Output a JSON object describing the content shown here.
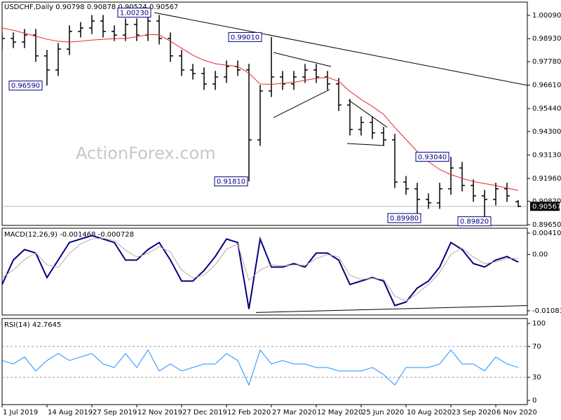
{
  "chart_data": [
    {
      "type": "ohlc",
      "title": "USDCHF,Daily",
      "watermark": "ActionForex.com",
      "color": "#000000",
      "x": [
        0,
        8,
        16,
        24,
        32,
        40,
        48,
        56,
        64,
        72,
        80,
        88,
        96,
        104,
        112,
        120,
        128,
        136,
        144,
        152,
        160,
        168,
        176,
        184,
        192,
        200,
        208,
        216,
        224,
        232,
        240,
        248,
        256,
        264,
        272,
        280,
        288,
        296,
        304,
        312,
        320,
        328,
        336,
        344,
        352,
        360,
        368
      ],
      "xlim": [
        0,
        374.5
      ],
      "open": [
        0.987,
        0.9894,
        0.9876,
        0.9911,
        0.9807,
        0.9737,
        0.9841,
        0.9929,
        0.9946,
        0.9981,
        0.9929,
        0.9911,
        0.9964,
        0.9911,
        0.9981,
        0.9894,
        0.9807,
        0.9737,
        0.9719,
        0.9667,
        0.9702,
        0.9754,
        0.9737,
        0.9388,
        0.9632,
        0.9702,
        0.9667,
        0.9702,
        0.9737,
        0.9702,
        0.9667,
        0.9562,
        0.944,
        0.9475,
        0.9423,
        0.9388,
        0.9178,
        0.9144,
        0.9091,
        0.9074,
        0.9144,
        0.9248,
        0.9161,
        0.9109,
        0.9091,
        0.9144,
        0.90798
      ],
      "high": [
        0.9924,
        0.9924,
        0.9941,
        0.9941,
        0.9837,
        0.9871,
        0.9959,
        0.9976,
        1.0011,
        1.0011,
        0.9959,
        0.9994,
        0.9994,
        1.0023,
        1.0011,
        0.9924,
        0.9837,
        0.9767,
        0.9749,
        0.9732,
        0.9784,
        0.9784,
        0.9767,
        0.9662,
        0.9901,
        0.9732,
        0.9732,
        0.9767,
        0.9767,
        0.9732,
        0.9697,
        0.9592,
        0.9505,
        0.9505,
        0.9453,
        0.9418,
        0.9208,
        0.9174,
        0.9121,
        0.9174,
        0.9304,
        0.9278,
        0.9191,
        0.9139,
        0.9174,
        0.9174,
        0.90878
      ],
      "low": [
        0.984,
        0.9846,
        0.9846,
        0.9777,
        0.9659,
        0.9707,
        0.9811,
        0.9899,
        0.9916,
        0.9899,
        0.9881,
        0.9881,
        0.9881,
        0.9881,
        0.9864,
        0.9777,
        0.9707,
        0.9689,
        0.9637,
        0.9637,
        0.9672,
        0.9707,
        0.9181,
        0.9358,
        0.9602,
        0.9637,
        0.9637,
        0.9672,
        0.9672,
        0.9637,
        0.9532,
        0.941,
        0.941,
        0.9393,
        0.9358,
        0.9148,
        0.9114,
        0.8998,
        0.9044,
        0.9044,
        0.9114,
        0.9131,
        0.9079,
        0.8982,
        0.9061,
        0.9079,
        0.90524
      ],
      "close": [
        0.9894,
        0.9876,
        0.9911,
        0.9807,
        0.9737,
        0.9841,
        0.9929,
        0.9946,
        0.9981,
        0.9929,
        0.9911,
        0.9964,
        0.9911,
        0.9981,
        0.9894,
        0.9807,
        0.9737,
        0.9719,
        0.9667,
        0.9702,
        0.9754,
        0.9737,
        0.9388,
        0.9632,
        0.9702,
        0.9667,
        0.9702,
        0.9737,
        0.9702,
        0.9667,
        0.9562,
        0.944,
        0.9475,
        0.9423,
        0.9388,
        0.9178,
        0.9144,
        0.9091,
        0.9074,
        0.9144,
        0.9248,
        0.9161,
        0.9109,
        0.9091,
        0.9144,
        0.9109,
        0.90567
      ],
      "lines": [
        {
          "color": "#e8232c",
          "values": [
            0.9946,
            0.9935,
            0.992,
            0.9905,
            0.989,
            0.988,
            0.9876,
            0.988,
            0.9886,
            0.989,
            0.9893,
            0.9894,
            0.9902,
            0.9914,
            0.9912,
            0.988,
            0.9845,
            0.981,
            0.9785,
            0.9768,
            0.976,
            0.9755,
            0.972,
            0.9667,
            0.9665,
            0.967,
            0.9675,
            0.9685,
            0.9695,
            0.97,
            0.968,
            0.963,
            0.959,
            0.9555,
            0.9515,
            0.945,
            0.939,
            0.933,
            0.928,
            0.924,
            0.9215,
            0.9196,
            0.918,
            0.917,
            0.916,
            0.9148,
            0.9136
          ]
        }
      ],
      "ylim": [
        0.89615,
        1.00753
      ],
      "yticks": [
        {
          "value": 1.0009,
          "label": "1.00090"
        },
        {
          "value": 0.9893,
          "label": "0.98930"
        },
        {
          "value": 0.9778,
          "label": "0.97780"
        },
        {
          "value": 0.9661,
          "label": "0.96610"
        },
        {
          "value": 0.9544,
          "label": "0.95440"
        },
        {
          "value": 0.943,
          "label": "0.94300"
        },
        {
          "value": 0.9313,
          "label": "0.93130"
        },
        {
          "value": 0.9196,
          "label": "0.91960"
        },
        {
          "value": 0.9082,
          "label": "0.90820"
        },
        {
          "value": 0.8965,
          "label": "0.89650"
        }
      ],
      "annotations": [
        {
          "label": "1.00230",
          "x": 108.5,
          "y": 1.0023
        },
        {
          "label": "0.99010",
          "x": 187.5,
          "y": 0.9901
        },
        {
          "label": "0.96590",
          "x": 31,
          "y": 0.9659
        },
        {
          "label": "0.91810",
          "x": 177.5,
          "y": 0.9181
        },
        {
          "label": "0.93040",
          "x": 321,
          "y": 0.9304
        },
        {
          "label": "0.89980",
          "x": 301,
          "y": 0.8998
        },
        {
          "label": "0.89820",
          "x": 351,
          "y": 0.8982
        }
      ],
      "trendlines": [
        {
          "x": [
            108.5,
            374.5
          ],
          "y": [
            1.0023,
            0.966
          ]
        },
        {
          "x": [
            193.5,
            234.5
          ],
          "y": [
            0.9824,
            0.9754
          ]
        },
        {
          "x": [
            193.5,
            233.5
          ],
          "y": [
            0.9499,
            0.9639
          ]
        },
        {
          "x": [
            247,
            274.5
          ],
          "y": [
            0.9587,
            0.9451
          ]
        },
        {
          "x": [
            246,
            272.5
          ],
          "y": [
            0.937,
            0.936
          ]
        }
      ]
    },
    {
      "type": "line",
      "title": "MACD(12,26,9)",
      "x": [
        0,
        8,
        16,
        24,
        32,
        40,
        48,
        56,
        64,
        72,
        80,
        88,
        96,
        104,
        112,
        120,
        128,
        136,
        144,
        152,
        160,
        168,
        176,
        184,
        192,
        200,
        208,
        216,
        224,
        232,
        240,
        248,
        256,
        264,
        272,
        280,
        288,
        296,
        304,
        312,
        320,
        328,
        336,
        344,
        352,
        360,
        368
      ],
      "xlim": [
        0,
        374.5
      ],
      "series": [
        {
          "color": "#000080",
          "values": [
            -0.00578,
            -0.00108,
            0.00094,
            0.00027,
            -0.00444,
            -0.00108,
            0.00229,
            0.00296,
            0.00363,
            0.00296,
            0.00229,
            -0.00108,
            -0.00108,
            0.00094,
            0.00229,
            -0.00108,
            -0.00511,
            -0.00511,
            -0.00309,
            -0.0004,
            0.00296,
            0.00229,
            -0.01049,
            0.00296,
            -0.00242,
            -0.00242,
            -0.00175,
            -0.00242,
            0.00027,
            0.00027,
            -0.00108,
            -0.00578,
            -0.00511,
            -0.00444,
            -0.00511,
            -0.00982,
            -0.00915,
            -0.00646,
            -0.00511,
            -0.00242,
            0.00229,
            0.00094,
            -0.00175,
            -0.00242,
            -0.00108,
            -0.0004,
            -0.001468
          ]
        },
        {
          "color": "#c9a3a3",
          "values": [
            -0.0045,
            -0.003,
            -0.001,
            0.0003,
            -0.002,
            -0.0025,
            0.0002,
            0.002,
            0.003,
            0.0031,
            0.0027,
            0.0008,
            -0.0005,
            0.0002,
            0.0015,
            0.0005,
            -0.003,
            -0.0045,
            -0.004,
            -0.002,
            0.001,
            0.002,
            -0.005,
            -0.003,
            -0.002,
            -0.0022,
            -0.002,
            -0.0021,
            -0.0008,
            0.0,
            -0.0005,
            -0.004,
            -0.0048,
            -0.0046,
            -0.0048,
            -0.008,
            -0.009,
            -0.0075,
            -0.0058,
            -0.0035,
            0.0,
            0.0012,
            -0.0005,
            -0.0018,
            -0.0014,
            -0.0008,
            -0.000728
          ]
        }
      ],
      "ylim": [
        -0.01164,
        0.005043
      ],
      "yticks": [
        0.004101,
        {
          "value": 0,
          "label": "0.00"
        },
        -0.010833
      ],
      "trendlines": [
        {
          "x": [
            181,
            374.5
          ],
          "y": [
            -0.01116,
            -0.00982
          ]
        }
      ]
    },
    {
      "type": "line",
      "title": "RSI(14)",
      "x": [
        0,
        8,
        16,
        24,
        32,
        40,
        48,
        56,
        64,
        72,
        80,
        88,
        96,
        104,
        112,
        120,
        128,
        136,
        144,
        152,
        160,
        168,
        176,
        184,
        192,
        200,
        208,
        216,
        224,
        232,
        240,
        248,
        256,
        264,
        272,
        280,
        288,
        296,
        304,
        312,
        320,
        328,
        336,
        344,
        352,
        360,
        368
      ],
      "xlim": [
        0,
        374.5
      ],
      "series": [
        {
          "color": "#1e90ff",
          "values": [
            51.8,
            47.3,
            56.4,
            38.2,
            51.8,
            60.9,
            51.8,
            56.4,
            60.9,
            47.3,
            42.7,
            60.9,
            42.7,
            65.5,
            38.2,
            47.3,
            38.2,
            42.7,
            47.3,
            47.3,
            60.9,
            51.8,
            20.0,
            65.5,
            47.3,
            51.8,
            47.3,
            47.3,
            42.7,
            42.7,
            38.2,
            38.2,
            38.2,
            42.7,
            33.6,
            20.0,
            42.7,
            42.7,
            42.7,
            47.3,
            65.5,
            47.3,
            47.3,
            38.2,
            56.4,
            47.3,
            42.7645
          ]
        }
      ],
      "ylim": [
        -5.5,
        106.4
      ],
      "yticks": [
        100,
        70,
        30,
        0
      ],
      "levels": [
        70,
        30
      ],
      "xticks": [
        {
          "value": 0,
          "label": "1 Jul 2019"
        },
        {
          "value": 32,
          "label": "14 Aug 2019"
        },
        {
          "value": 64,
          "label": "27 Sep 2019"
        },
        {
          "value": 96,
          "label": "12 Nov 2019"
        },
        {
          "value": 128,
          "label": "27 Dec 2019"
        },
        {
          "value": 160,
          "label": "12 Feb 2020"
        },
        {
          "value": 192,
          "label": "27 Mar 2020"
        },
        {
          "value": 224,
          "label": "12 May 2020"
        },
        {
          "value": 256,
          "label": "25 Jun 2020"
        },
        {
          "value": 288,
          "label": "10 Aug 2020"
        },
        {
          "value": 320,
          "label": "23 Sep 2020"
        },
        {
          "value": 352,
          "label": "6 Nov 2020"
        }
      ]
    }
  ]
}
